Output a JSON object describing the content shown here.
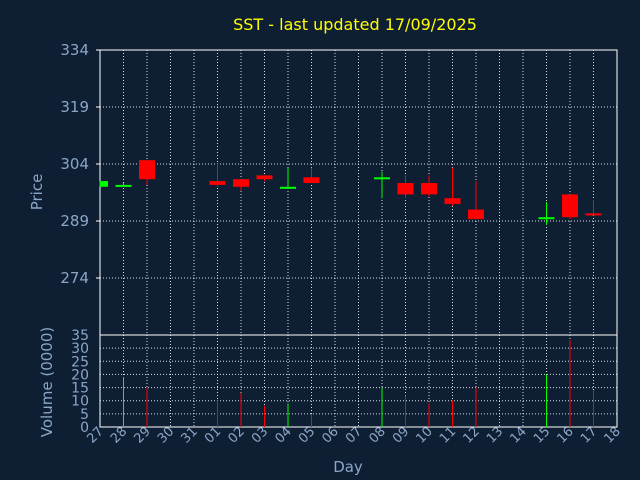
{
  "chart_data": {
    "type": "candlestick",
    "title": "SST - last updated 17/09/2025",
    "ylabel": "Price",
    "volume_label": "Volume (0000)",
    "xlabel": "Day",
    "ylim": [
      259,
      334
    ],
    "y_ticks": [
      274,
      289,
      304,
      319,
      334
    ],
    "volume_ylim": [
      0,
      35
    ],
    "volume_ticks": [
      0,
      5,
      10,
      15,
      20,
      25,
      30,
      35
    ],
    "x_ticks": [
      "27",
      "28",
      "29",
      "30",
      "31",
      "01",
      "02",
      "03",
      "04",
      "05",
      "06",
      "07",
      "08",
      "09",
      "10",
      "11",
      "12",
      "13",
      "14",
      "15",
      "16",
      "17",
      "18"
    ],
    "grid": true,
    "up_color": "#00ff00",
    "down_color": "#ff0000",
    "candles": [
      {
        "day": "27",
        "open": 298,
        "close": 299.5,
        "high": 299.5,
        "low": 298,
        "volume": 0
      },
      {
        "day": "28",
        "open": 298.5,
        "close": 298.5,
        "high": 299,
        "low": 298,
        "volume": 19
      },
      {
        "day": "29",
        "open": 305,
        "close": 300,
        "high": 305,
        "low": 298.5,
        "volume": 15
      },
      {
        "day": "01",
        "open": 299.5,
        "close": 298.5,
        "high": 304,
        "low": 298,
        "volume": 10
      },
      {
        "day": "02",
        "open": 300,
        "close": 298,
        "high": 300,
        "low": 297,
        "volume": 13
      },
      {
        "day": "03",
        "open": 301,
        "close": 300,
        "high": 301,
        "low": 299.5,
        "volume": 8
      },
      {
        "day": "04",
        "open": 298,
        "close": 298,
        "high": 303,
        "low": 297.5,
        "volume": 9
      },
      {
        "day": "05",
        "open": 300.5,
        "close": 299,
        "high": 303,
        "low": 299,
        "volume": 5
      },
      {
        "day": "08",
        "open": 300,
        "close": 300.5,
        "high": 302,
        "low": 295,
        "volume": 15
      },
      {
        "day": "09",
        "open": 299,
        "close": 296,
        "high": 301,
        "low": 295,
        "volume": 12
      },
      {
        "day": "10",
        "open": 299,
        "close": 296,
        "high": 301,
        "low": 295.5,
        "volume": 9
      },
      {
        "day": "11",
        "open": 295,
        "close": 293.5,
        "high": 303,
        "low": 293,
        "volume": 10
      },
      {
        "day": "12",
        "open": 292,
        "close": 289.5,
        "high": 299.5,
        "low": 289.5,
        "volume": 15
      },
      {
        "day": "15",
        "open": 290,
        "close": 290,
        "high": 294,
        "low": 288,
        "volume": 20
      },
      {
        "day": "16",
        "open": 296,
        "close": 290,
        "high": 296,
        "low": 289.5,
        "volume": 33
      },
      {
        "day": "17",
        "open": 291,
        "close": 290.5,
        "high": 294.5,
        "low": 290.5,
        "volume": 14
      }
    ]
  }
}
